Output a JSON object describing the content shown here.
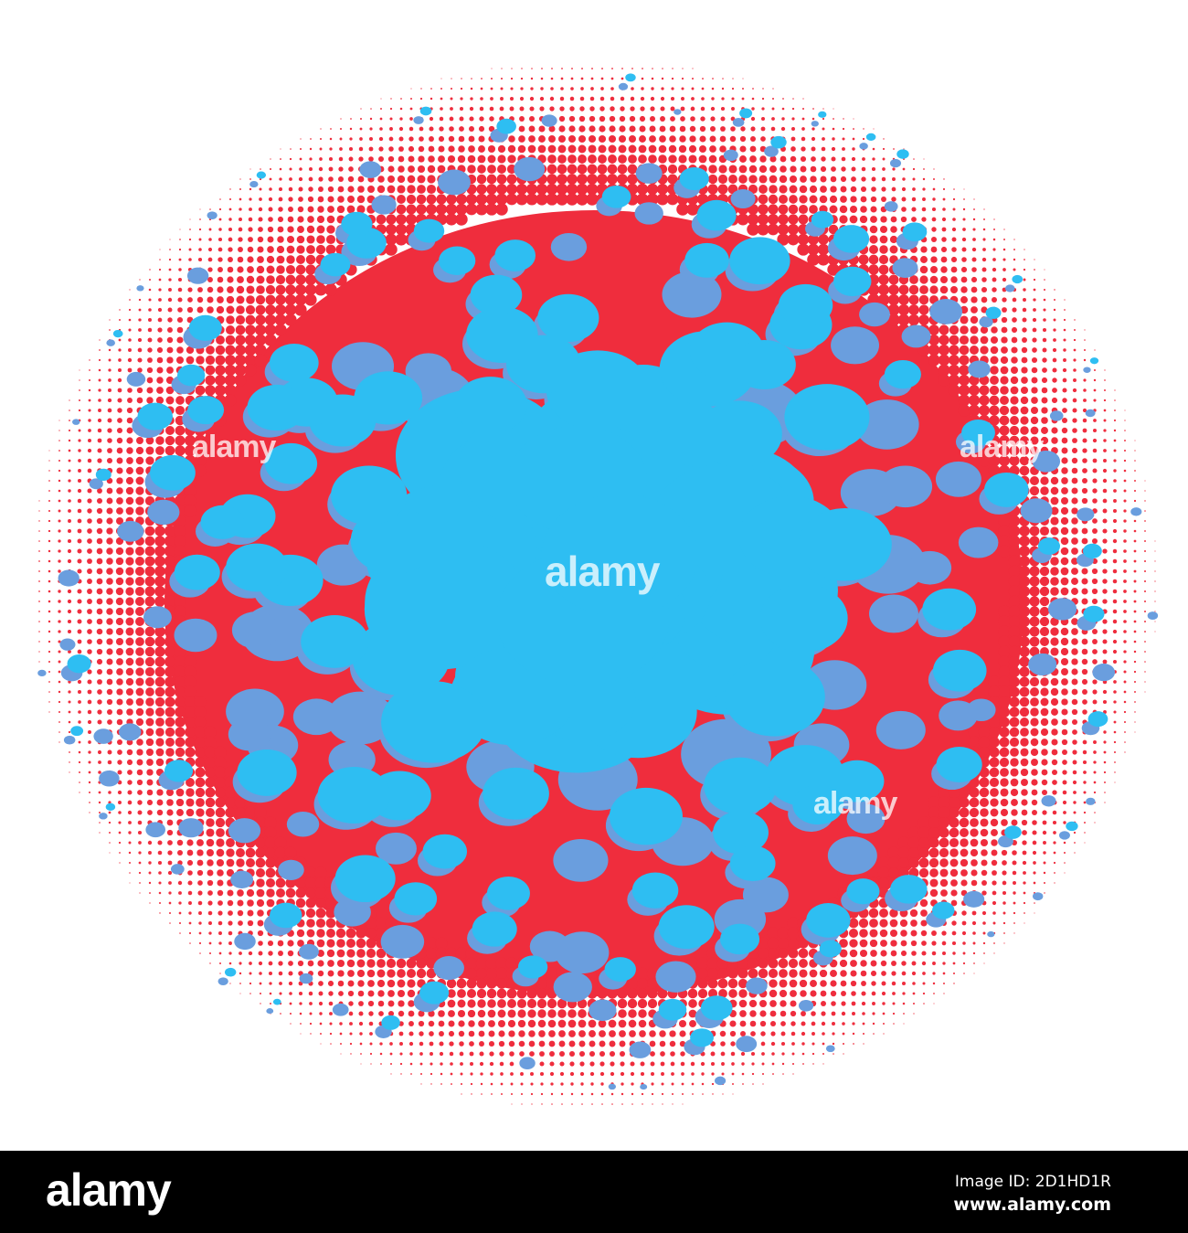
{
  "artwork": {
    "description_colors": {
      "background": "#ffffff",
      "halftone_red": "#ef2d3d",
      "blob_blue": "#2ebef2",
      "shadow_blue": "#6a9ede"
    },
    "watermark": "alamy"
  },
  "footer": {
    "logo": "alamy",
    "image_id": "Image ID: 2D1HD1R",
    "url": "www.alamy.com"
  }
}
